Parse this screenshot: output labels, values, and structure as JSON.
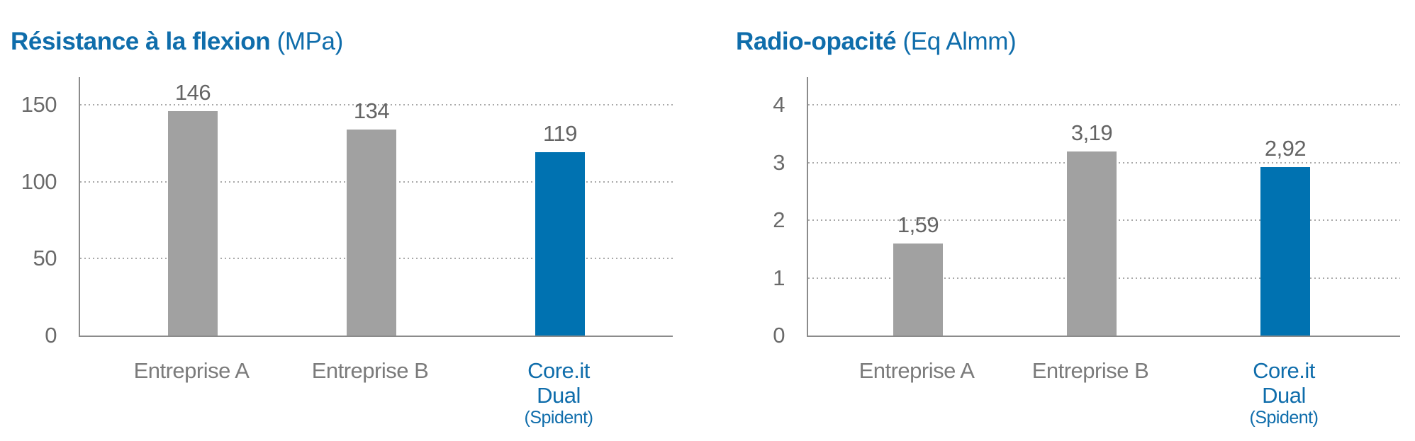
{
  "colors": {
    "accent_blue": "#0072b1",
    "title_blue": "#0f6dab",
    "bar_gray": "#a1a1a1",
    "text_gray": "#6a6a6a",
    "category_gray": "#7b7b7b",
    "axis_gray": "#8b8b8b",
    "grid_gray": "#a9a9a9"
  },
  "chart_data": [
    {
      "type": "bar",
      "title": "Résistance à la flexion (MPa)",
      "title_bold": "Résistance à la flexion",
      "title_unit": "(MPa)",
      "categories": [
        "Entreprise A",
        "Entreprise B",
        "Core.it Dual (Spident)"
      ],
      "category_labels": [
        {
          "lines": [
            "Entreprise A"
          ],
          "highlight": false,
          "small_last": false
        },
        {
          "lines": [
            "Entreprise B"
          ],
          "highlight": false,
          "small_last": false
        },
        {
          "lines": [
            "Core.it",
            "Dual",
            "(Spident)"
          ],
          "highlight": true,
          "small_last": true
        }
      ],
      "values": [
        146,
        134,
        119
      ],
      "value_labels": [
        "146",
        "134",
        "119"
      ],
      "bar_colors": [
        "gray",
        "gray",
        "blue"
      ],
      "xlabel": "",
      "ylabel": "",
      "ylim": [
        0,
        150
      ],
      "yticks": [
        0,
        50,
        100,
        150
      ],
      "grid": "horizontal-dotted",
      "legend": "none"
    },
    {
      "type": "bar",
      "title": "Radio-opacité (Eq Almm)",
      "title_bold": "Radio-opacité",
      "title_unit": "(Eq Almm)",
      "categories": [
        "Entreprise A",
        "Entreprise B",
        "Core.it Dual (Spident)"
      ],
      "category_labels": [
        {
          "lines": [
            "Entreprise A"
          ],
          "highlight": false,
          "small_last": false
        },
        {
          "lines": [
            "Entreprise B"
          ],
          "highlight": false,
          "small_last": false
        },
        {
          "lines": [
            "Core.it",
            "Dual",
            "(Spident)"
          ],
          "highlight": true,
          "small_last": true
        }
      ],
      "values": [
        1.59,
        3.19,
        2.92
      ],
      "value_labels": [
        "1,59",
        "3,19",
        "2,92"
      ],
      "bar_colors": [
        "gray",
        "gray",
        "blue"
      ],
      "xlabel": "",
      "ylabel": "",
      "ylim": [
        0,
        4
      ],
      "yticks": [
        0,
        1,
        2,
        3,
        4
      ],
      "grid": "horizontal-dotted",
      "legend": "none"
    }
  ]
}
